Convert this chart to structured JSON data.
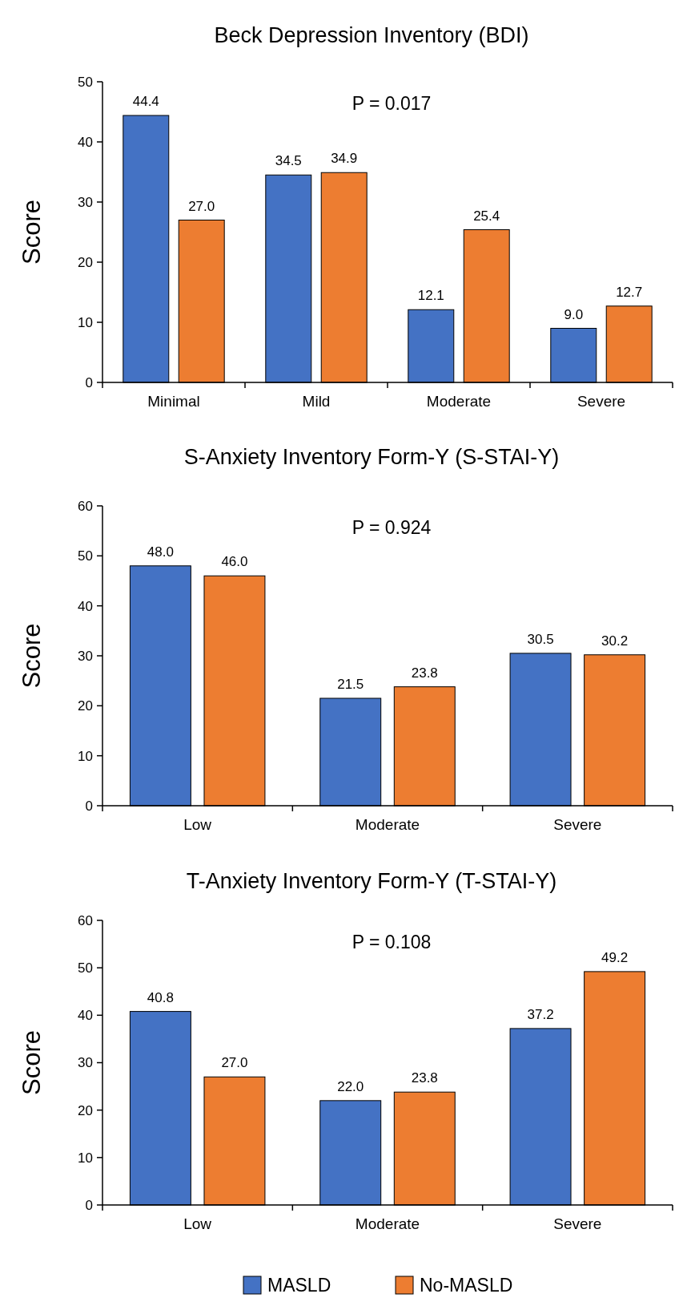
{
  "chart_data": [
    {
      "type": "bar",
      "title": "Beck Depression Inventory (BDI)",
      "ylabel": "Score",
      "categories": [
        "Minimal",
        "Mild",
        "Moderate",
        "Severe"
      ],
      "series": [
        {
          "color": "#4472c4",
          "values": [
            44.4,
            34.5,
            12.1,
            9.0
          ],
          "value_labels": [
            "44.4",
            "34.5",
            "12.1",
            "9.0"
          ]
        },
        {
          "color": "#ed7d31",
          "values": [
            27.0,
            34.9,
            25.4,
            12.7
          ],
          "value_labels": [
            "27.0",
            "34.9",
            "25.4",
            "12.7"
          ]
        }
      ],
      "ylim": [
        0,
        50
      ],
      "yticks": [
        0,
        10,
        20,
        30,
        40,
        50
      ],
      "annotations": [
        "P = 0.017"
      ],
      "legend": false
    },
    {
      "type": "bar",
      "title": "S-Anxiety Inventory Form-Y (S-STAI-Y)",
      "ylabel": "Score",
      "categories": [
        "Low",
        "Moderate",
        "Severe"
      ],
      "series": [
        {
          "color": "#4472c4",
          "values": [
            48.0,
            21.5,
            30.5
          ],
          "value_labels": [
            "48.0",
            "21.5",
            "30.5"
          ]
        },
        {
          "color": "#ed7d31",
          "values": [
            46.0,
            23.8,
            30.2
          ],
          "value_labels": [
            "46.0",
            "23.8",
            "30.2"
          ]
        }
      ],
      "ylim": [
        0,
        60
      ],
      "yticks": [
        0,
        10,
        20,
        30,
        40,
        50,
        60
      ],
      "annotations": [
        "P = 0.924"
      ],
      "legend": false
    },
    {
      "type": "bar",
      "title": "T-Anxiety Inventory Form-Y (T-STAI-Y)",
      "ylabel": "Score",
      "categories": [
        "Low",
        "Moderate",
        "Severe"
      ],
      "series": [
        {
          "name": "MASLD",
          "color": "#4472c4",
          "values": [
            40.8,
            22.0,
            37.2
          ],
          "value_labels": [
            "40.8",
            "22.0",
            "37.2"
          ]
        },
        {
          "name": "No-MASLD",
          "color": "#ed7d31",
          "values": [
            27.0,
            23.8,
            49.2
          ],
          "value_labels": [
            "27.0",
            "23.8",
            "49.2"
          ]
        }
      ],
      "ylim": [
        0,
        60
      ],
      "yticks": [
        0,
        10,
        20,
        30,
        40,
        50,
        60
      ],
      "annotations": [
        "P = 0.108"
      ],
      "legend": "bottom"
    }
  ]
}
